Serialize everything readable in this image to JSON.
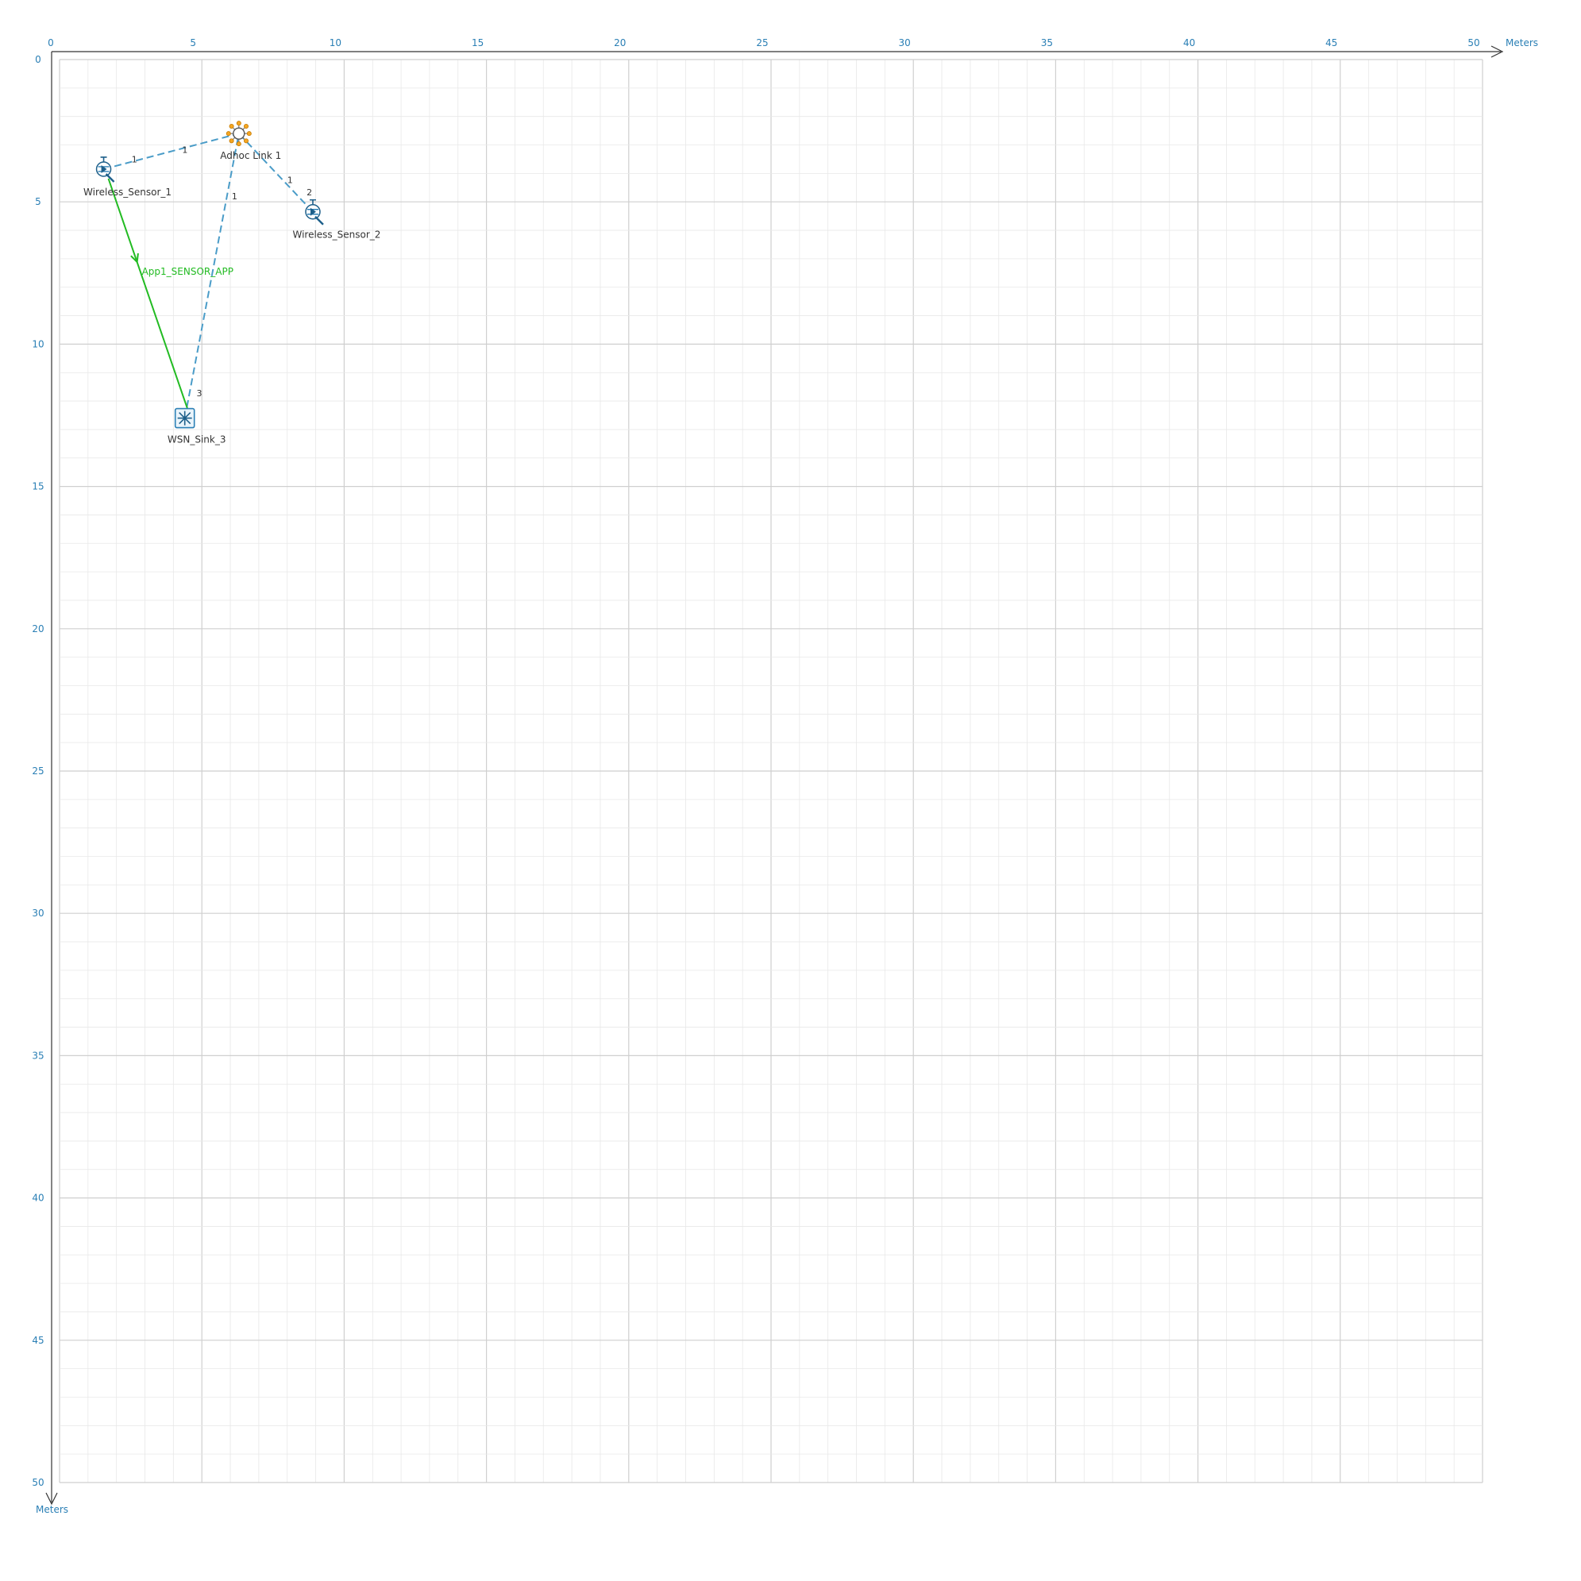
{
  "axis": {
    "unit_x": "Meters",
    "unit_y": "Meters",
    "range_x": [
      0,
      50
    ],
    "range_y": [
      0,
      50
    ],
    "major_step": 5,
    "minor_step": 1,
    "tick_labels_x": [
      "0",
      "5",
      "10",
      "15",
      "20",
      "25",
      "30",
      "35",
      "40",
      "45",
      "50"
    ],
    "tick_labels_y": [
      "0",
      "5",
      "10",
      "15",
      "20",
      "25",
      "30",
      "35",
      "40",
      "45",
      "50"
    ],
    "axis_color": "#333333",
    "tick_color": "#2a7fb5",
    "major_grid_color": "#cfcfcf",
    "minor_grid_color": "#e8e8e8"
  },
  "devices": [
    {
      "id": "ws1",
      "label": "Wireless_Sensor_1",
      "type": "sensor",
      "x": 1.55,
      "y": 3.85,
      "icon": "wireless-sensor-icon"
    },
    {
      "id": "ws2",
      "label": "Wireless_Sensor_2",
      "type": "sensor",
      "x": 8.9,
      "y": 5.35,
      "icon": "wireless-sensor-icon"
    },
    {
      "id": "sink",
      "label": "WSN_Sink_3",
      "type": "sink",
      "x": 4.4,
      "y": 12.6,
      "icon": "wsn-sink-icon"
    },
    {
      "id": "adhoc",
      "label": "Adhoc Link 1",
      "type": "link",
      "x": 6.3,
      "y": 2.6,
      "icon": "adhoc-link-icon"
    }
  ],
  "links": [
    {
      "from": "ws1",
      "to": "adhoc",
      "port_label": "1",
      "hub_label": "1"
    },
    {
      "from": "ws2",
      "to": "adhoc",
      "port_label": "2",
      "hub_label": "1"
    },
    {
      "from": "sink",
      "to": "adhoc",
      "port_label": "3",
      "hub_label": "1"
    }
  ],
  "link_color": "#4a9cc8",
  "application": {
    "label": "App1_SENSOR_APP",
    "from": "ws1",
    "to": "sink",
    "color": "#22bb22"
  }
}
